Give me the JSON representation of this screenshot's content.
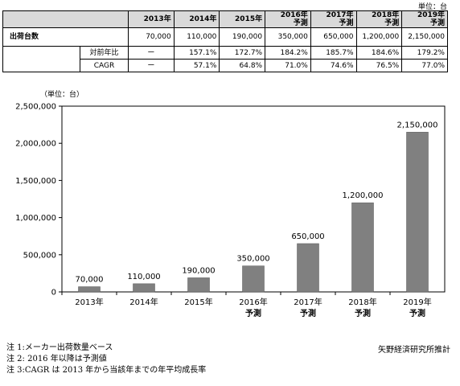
{
  "table": {
    "unit": "単位：台",
    "headers": [
      {
        "line1": "2013年",
        "line2": ""
      },
      {
        "line1": "2014年",
        "line2": ""
      },
      {
        "line1": "2015年",
        "line2": ""
      },
      {
        "line1": "2016年",
        "line2": "予測"
      },
      {
        "line1": "2017年",
        "line2": "予測"
      },
      {
        "line1": "2018年",
        "line2": "予測"
      },
      {
        "line1": "2019年",
        "line2": "予測"
      }
    ],
    "rows": {
      "shipments_label": "出荷台数",
      "shipments": [
        "70,000",
        "110,000",
        "190,000",
        "350,000",
        "650,000",
        "1,200,000",
        "2,150,000"
      ],
      "yoy_label": "対前年比",
      "yoy": [
        "ー",
        "157.1%",
        "172.7%",
        "184.2%",
        "185.7%",
        "184.6%",
        "179.2%"
      ],
      "cagr_label": "CAGR",
      "cagr": [
        "ー",
        "57.1%",
        "64.8%",
        "71.0%",
        "74.6%",
        "76.5%",
        "77.0%"
      ]
    }
  },
  "chart_data": {
    "type": "bar",
    "unit_label": "（単位：台）",
    "categories": [
      {
        "line1": "2013年",
        "line2": ""
      },
      {
        "line1": "2014年",
        "line2": ""
      },
      {
        "line1": "2015年",
        "line2": ""
      },
      {
        "line1": "2016年",
        "line2": "予測"
      },
      {
        "line1": "2017年",
        "line2": "予測"
      },
      {
        "line1": "2018年",
        "line2": "予測"
      },
      {
        "line1": "2019年",
        "line2": "予測"
      }
    ],
    "values": [
      70000,
      110000,
      190000,
      350000,
      650000,
      1200000,
      2150000
    ],
    "data_labels": [
      "70,000",
      "110,000",
      "190,000",
      "350,000",
      "650,000",
      "1,200,000",
      "2,150,000"
    ],
    "ylim": [
      0,
      2500000
    ],
    "yticks": [
      0,
      500000,
      1000000,
      1500000,
      2000000,
      2500000
    ],
    "ytick_labels": [
      "0",
      "500,000",
      "1,000,000",
      "1,500,000",
      "2,000,000",
      "2,500,000"
    ],
    "bar_color": "#808080",
    "grid": false,
    "legend": "none"
  },
  "notes": [
    "注 1:メーカー出荷数量ベース",
    "注 2: 2016 年以降は予測値",
    "注 3:CAGR は 2013 年から当該年までの年平均成長率"
  ],
  "source": "矢野経済研究所推計"
}
